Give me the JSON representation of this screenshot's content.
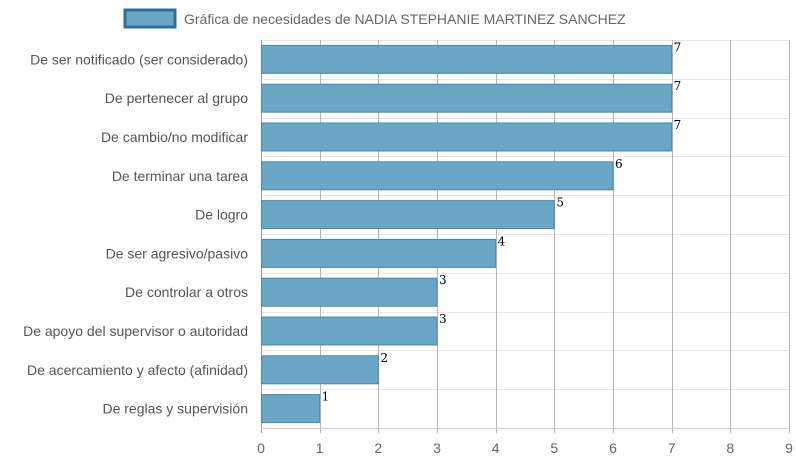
{
  "chart_data": {
    "type": "bar",
    "orientation": "horizontal",
    "categories": [
      "De ser notificado (ser considerado)",
      "De pertenecer al grupo",
      "De cambio/no modificar",
      "De terminar una tarea",
      "De logro",
      "De ser agresivo/pasivo",
      "De controlar a otros",
      "De apoyo del supervisor o autoridad",
      "De acercamiento y afecto (afinidad)",
      "De reglas y supervisión"
    ],
    "series": [
      {
        "name": "Gráfica de necesidades de NADIA STEPHANIE MARTINEZ SANCHEZ",
        "values": [
          7,
          7,
          7,
          6,
          5,
          4,
          3,
          3,
          2,
          1
        ]
      }
    ],
    "xlim": [
      0,
      9
    ],
    "xticks": [
      "0",
      "1",
      "2",
      "3",
      "4",
      "5",
      "6",
      "7",
      "8",
      "9"
    ],
    "grid": true,
    "legend_position": "top-center",
    "colors": {
      "bar_fill": "#6aa6c5",
      "bar_stroke": "#4a88aa",
      "legend_fill": "#6aa6c5",
      "legend_stroke": "#2d6f96"
    }
  }
}
